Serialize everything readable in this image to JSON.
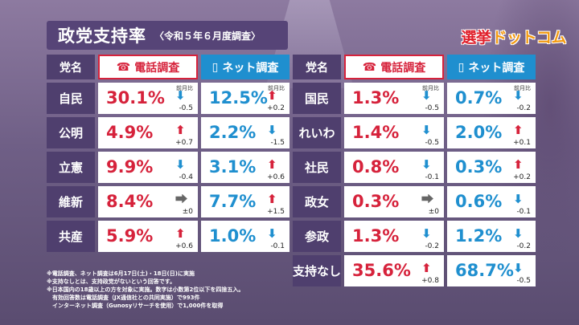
{
  "title": {
    "main": "政党支持率",
    "sub": "〈令和５年６月度調査〉"
  },
  "logo": {
    "text1": "選挙",
    "text2": "ドットコム"
  },
  "headers": {
    "party": "党名",
    "phone": "電話調査",
    "net": "ネット調査",
    "phone_icon": "phone-icon",
    "net_icon": "smartphone-icon"
  },
  "change_label": "前月比",
  "left_rows": [
    {
      "party": "自民",
      "phone": "30.1%",
      "phone_dir": "down",
      "phone_delta": "-0.5",
      "net": "12.5%",
      "net_dir": "up",
      "net_delta": "+0.2",
      "phone_label": "前月比",
      "net_label": "前月比"
    },
    {
      "party": "公明",
      "phone": "4.9%",
      "phone_dir": "up",
      "phone_delta": "+0.7",
      "net": "2.2%",
      "net_dir": "down",
      "net_delta": "-1.5",
      "phone_label": "",
      "net_label": ""
    },
    {
      "party": "立憲",
      "phone": "9.9%",
      "phone_dir": "down",
      "phone_delta": "-0.4",
      "net": "3.1%",
      "net_dir": "up",
      "net_delta": "+0.6",
      "phone_label": "",
      "net_label": ""
    },
    {
      "party": "維新",
      "phone": "8.4%",
      "phone_dir": "flat",
      "phone_delta": "±0",
      "net": "7.7%",
      "net_dir": "up",
      "net_delta": "+1.5",
      "phone_label": "",
      "net_label": ""
    },
    {
      "party": "共産",
      "phone": "5.9%",
      "phone_dir": "up",
      "phone_delta": "+0.6",
      "net": "1.0%",
      "net_dir": "down",
      "net_delta": "-0.1",
      "phone_label": "",
      "net_label": ""
    }
  ],
  "right_rows": [
    {
      "party": "国民",
      "phone": "1.3%",
      "phone_dir": "down",
      "phone_delta": "-0.5",
      "net": "0.7%",
      "net_dir": "down",
      "net_delta": "-0.2",
      "phone_label": "前月比",
      "net_label": "前月比"
    },
    {
      "party": "れいわ",
      "phone": "1.4%",
      "phone_dir": "down",
      "phone_delta": "-0.5",
      "net": "2.0%",
      "net_dir": "up",
      "net_delta": "+0.1",
      "phone_label": "",
      "net_label": ""
    },
    {
      "party": "社民",
      "phone": "0.8%",
      "phone_dir": "down",
      "phone_delta": "-0.1",
      "net": "0.3%",
      "net_dir": "up",
      "net_delta": "+0.2",
      "phone_label": "",
      "net_label": ""
    },
    {
      "party": "政女",
      "phone": "0.3%",
      "phone_dir": "flat",
      "phone_delta": "±0",
      "net": "0.6%",
      "net_dir": "down",
      "net_delta": "-0.1",
      "phone_label": "",
      "net_label": ""
    },
    {
      "party": "参政",
      "phone": "1.3%",
      "phone_dir": "down",
      "phone_delta": "-0.2",
      "net": "1.2%",
      "net_dir": "down",
      "net_delta": "-0.2",
      "phone_label": "",
      "net_label": ""
    },
    {
      "party": "支持なし",
      "phone": "35.6%",
      "phone_dir": "up",
      "phone_delta": "+0.8",
      "net": "68.7%",
      "net_dir": "down",
      "net_delta": "-0.5",
      "phone_label": "",
      "net_label": ""
    }
  ],
  "notes": [
    "※電話調査、ネット調査は6月17日(土)・18日(日)に実施",
    "※支持なしとは、支持政党がないという回答です。",
    "※日本国内の18歳以上の方を対象に実施。数字は小数第2位以下を四捨五入。",
    "　有効回答数は電話調査（JX通信社との共同実施）で993件",
    "　インターネット調査（Gunosyリサーチを使用）で1,000件を取得"
  ],
  "colors": {
    "phone": "#d6223b",
    "net": "#1f8fcf",
    "party_bg": "#4f3f6e",
    "flat": "#666666"
  }
}
